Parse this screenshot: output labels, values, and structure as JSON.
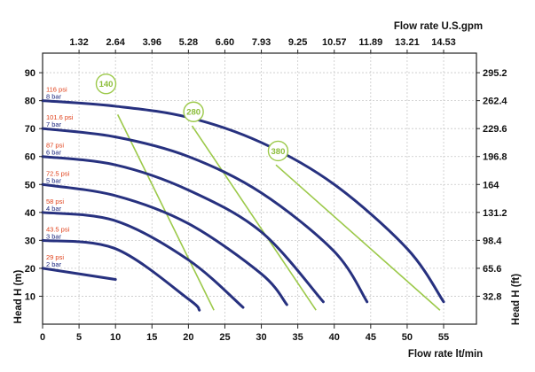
{
  "chart_data": {
    "type": "line",
    "top_axis_title": "Flow rate U.S.gpm",
    "top_ticks": [
      "1.32",
      "2.64",
      "3.96",
      "5.28",
      "6.60",
      "7.93",
      "9.25",
      "10.57",
      "11.89",
      "13.21",
      "14.53"
    ],
    "xlabel": "Flow rate  lt/min",
    "x_ticks": [
      "0",
      "5",
      "10",
      "15",
      "20",
      "25",
      "30",
      "35",
      "40",
      "45",
      "50",
      "55"
    ],
    "xlim": [
      0,
      59.5
    ],
    "ylabel": "Head H (m)",
    "y_ticks": [
      "10",
      "20",
      "30",
      "40",
      "50",
      "60",
      "70",
      "80",
      "90"
    ],
    "ylim": [
      0,
      97
    ],
    "right_ylabel": "Head H (ft)",
    "right_ticks": [
      "32.8",
      "65.6",
      "98.4",
      "131.2",
      "164",
      "196.8",
      "229.6",
      "262.4",
      "295.2"
    ],
    "grid": true,
    "colors": {
      "curve": "#27317f",
      "efficiency": "#9cc94a",
      "psi_label": "#e0401a",
      "bar_label": "#1f2a80",
      "grid": "#c8c8c8"
    },
    "series": [
      {
        "psi": "116 psi",
        "bar": "8 bar",
        "x": [
          0,
          10,
          20,
          30,
          40,
          50,
          55
        ],
        "y": [
          80,
          78,
          74,
          65,
          50,
          27,
          8
        ]
      },
      {
        "psi": "101.6 psi",
        "bar": "7 bar",
        "x": [
          0,
          10,
          20,
          30,
          40,
          44.5
        ],
        "y": [
          70,
          67,
          60,
          47,
          26,
          8
        ]
      },
      {
        "psi": "87 psi",
        "bar": "6 bar",
        "x": [
          0,
          10,
          20,
          30,
          38.5
        ],
        "y": [
          60,
          57,
          48,
          33,
          8
        ]
      },
      {
        "psi": "72.5 psi",
        "bar": "5 bar",
        "x": [
          0,
          10,
          20,
          30,
          33.5
        ],
        "y": [
          50,
          46,
          36,
          18,
          7
        ]
      },
      {
        "psi": "58 psi",
        "bar": "4 bar",
        "x": [
          0,
          10,
          20,
          27.5
        ],
        "y": [
          40,
          37,
          23,
          6
        ]
      },
      {
        "psi": "43.5 psi",
        "bar": "3 bar",
        "x": [
          0,
          10,
          20,
          21.5
        ],
        "y": [
          30,
          27,
          9,
          5
        ]
      },
      {
        "psi": "29 psi",
        "bar": "2 bar",
        "x": [
          0,
          10
        ],
        "y": [
          20,
          16
        ]
      }
    ],
    "efficiency_lines": [
      {
        "label": "140",
        "x": [
          10.3,
          23.5
        ],
        "y": [
          75,
          5
        ]
      },
      {
        "label": "280",
        "x": [
          20.5,
          37.5
        ],
        "y": [
          71,
          5
        ]
      },
      {
        "label": "380",
        "x": [
          32.0,
          54.5
        ],
        "y": [
          57,
          5
        ]
      }
    ],
    "efficiency_label_points": [
      {
        "label": "140",
        "x": 8.7,
        "y": 86
      },
      {
        "label": "280",
        "x": 20.7,
        "y": 76
      },
      {
        "label": "380",
        "x": 32.3,
        "y": 62
      }
    ]
  }
}
